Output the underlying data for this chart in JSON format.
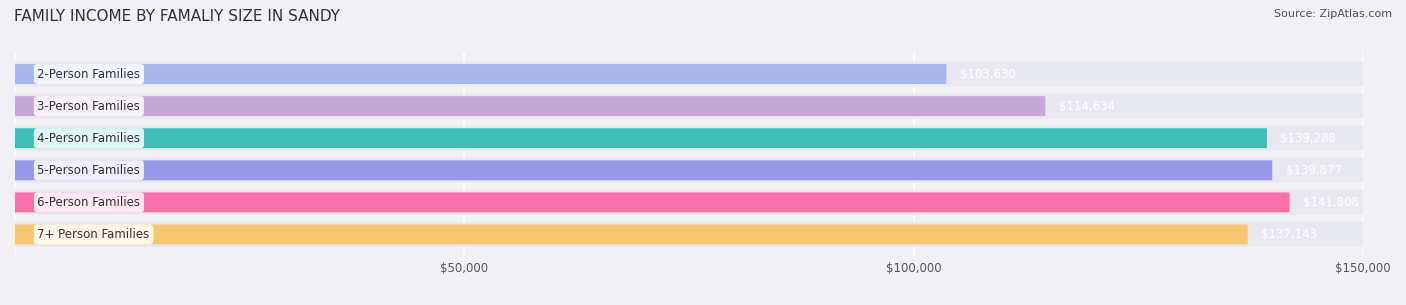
{
  "title": "FAMILY INCOME BY FAMALIY SIZE IN SANDY",
  "source": "Source: ZipAtlas.com",
  "categories": [
    "2-Person Families",
    "3-Person Families",
    "4-Person Families",
    "5-Person Families",
    "6-Person Families",
    "7+ Person Families"
  ],
  "values": [
    103630,
    114634,
    139288,
    139877,
    141808,
    137143
  ],
  "labels": [
    "$103,630",
    "$114,634",
    "$139,288",
    "$139,877",
    "$141,808",
    "$137,143"
  ],
  "bar_colors": [
    "#a8b8e8",
    "#c8a8d8",
    "#3dbfb8",
    "#9898e8",
    "#f870a8",
    "#f8c870"
  ],
  "bar_colors_light": [
    "#d0dcf8",
    "#e0c8f0",
    "#90e0dc",
    "#c8c8f8",
    "#fca8cc",
    "#fce0a8"
  ],
  "xlim": [
    0,
    150000
  ],
  "xticks": [
    0,
    50000,
    100000,
    150000
  ],
  "xtick_labels": [
    "$50,000",
    "$100,000",
    "$150,000"
  ],
  "background_color": "#f0f0f5",
  "bar_background_color": "#e8e8f0",
  "title_fontsize": 11,
  "label_fontsize": 8.5,
  "value_fontsize": 8.5,
  "source_fontsize": 8
}
